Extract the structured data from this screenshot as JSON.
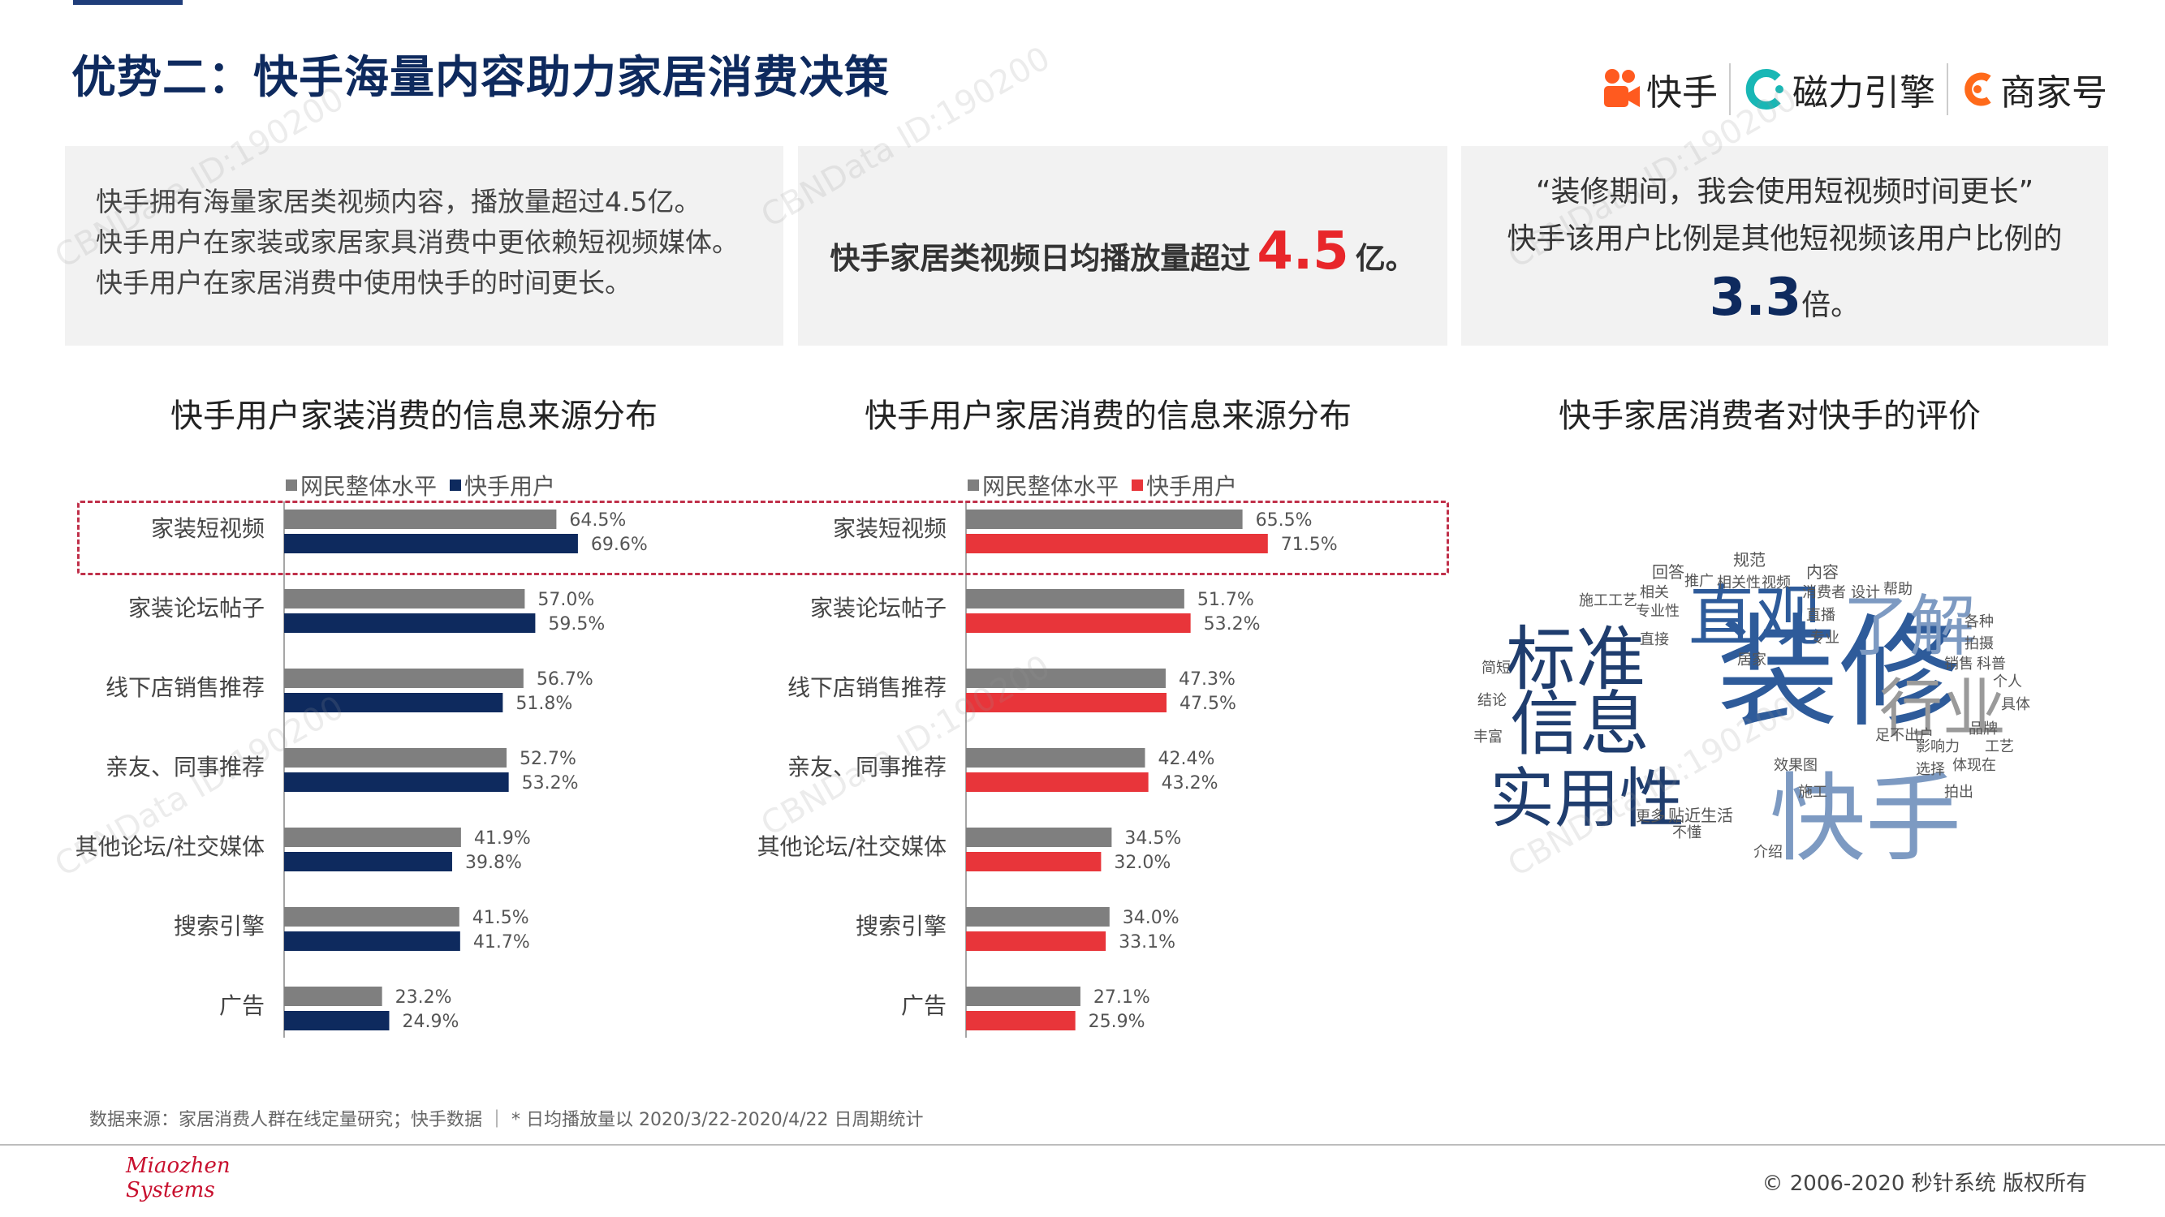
{
  "page": {
    "title": "优势二：快手海量内容助力家居消费决策",
    "footnote": "数据来源：家居消费人群在线定量研究；快手数据 ｜ * 日均播放量以 2020/3/22-2020/4/22 日周期统计",
    "brand_logo_line1": "Miaozhen",
    "brand_logo_line2": "Systems",
    "copyright": "© 2006-2020 秒针系统 版权所有",
    "watermark": "CBNData ID:190200",
    "logos": [
      "快手",
      "磁力引擎",
      "商家号"
    ]
  },
  "cards": {
    "card1_lines": [
      "快手拥有海量家居类视频内容，播放量超过4.5亿。",
      "快手用户在家装或家居家具消费中更依赖短视频媒体。",
      "快手用户在家居消费中使用快手的时间更长。"
    ],
    "card2_prefix": "快手家居类视频日均播放量超过",
    "card2_value": "4.5",
    "card2_suffix": "亿。",
    "card3_line1": "“装修期间，我会使用短视频时间更长”",
    "card3_line2": "快手该用户比例是其他短视频该用户比例的",
    "card3_value": "3.3",
    "card3_suffix": "倍。"
  },
  "sections": {
    "chart1_title": "快手用户家装消费的信息来源分布",
    "chart2_title": "快手用户家居消费的信息来源分布",
    "cloud_title": "快手家居消费者对快手的评价"
  },
  "colors": {
    "overall": "#7f7f7f",
    "kuaishou_navy": "#0e2a5e",
    "kuaishou_red": "#e8353a",
    "title": "#0e2a5e"
  },
  "chart_data": [
    {
      "type": "bar",
      "orientation": "horizontal",
      "title": "快手用户家装消费的信息来源分布",
      "categories": [
        "家装短视频",
        "家装论坛帖子",
        "线下店销售推荐",
        "亲友、同事推荐",
        "其他论坛/社交媒体",
        "搜索引擎",
        "广告"
      ],
      "series": [
        {
          "name": "网民整体水平",
          "values": [
            64.5,
            57.0,
            56.7,
            52.7,
            41.9,
            41.5,
            23.2
          ],
          "color": "#7f7f7f"
        },
        {
          "name": "快手用户",
          "values": [
            69.6,
            59.5,
            51.8,
            53.2,
            39.8,
            41.7,
            24.9
          ],
          "color": "#0e2a5e"
        }
      ],
      "value_suffix": "%",
      "xlim": [
        0,
        100
      ],
      "legend": "top"
    },
    {
      "type": "bar",
      "orientation": "horizontal",
      "title": "快手用户家居消费的信息来源分布",
      "categories": [
        "家装短视频",
        "家装论坛帖子",
        "线下店销售推荐",
        "亲友、同事推荐",
        "其他论坛/社交媒体",
        "搜索引擎",
        "广告"
      ],
      "series": [
        {
          "name": "网民整体水平",
          "values": [
            65.5,
            51.7,
            47.3,
            42.4,
            34.5,
            34.0,
            27.1
          ],
          "color": "#7f7f7f"
        },
        {
          "name": "快手用户",
          "values": [
            71.5,
            53.2,
            47.5,
            43.2,
            32.0,
            33.1,
            25.9
          ],
          "color": "#e8353a"
        }
      ],
      "value_suffix": "%",
      "xlim": [
        0,
        100
      ],
      "legend": "top"
    }
  ],
  "word_cloud": [
    {
      "text": "装修",
      "color": "#2e5b9a"
    },
    {
      "text": "快手",
      "color": "#7d9ac2"
    },
    {
      "text": "标准",
      "color": "#1f3d6e"
    },
    {
      "text": "直观",
      "color": "#2e5b9a"
    },
    {
      "text": "了解",
      "color": "#7d9ac2"
    },
    {
      "text": "信息",
      "color": "#1f3d6e"
    },
    {
      "text": "实用性",
      "color": "#1f3d6e"
    },
    {
      "text": "行业",
      "color": "#9a9a9a"
    },
    {
      "text": "规范",
      "color": "#555555"
    },
    {
      "text": "回答",
      "color": "#555555"
    },
    {
      "text": "推广",
      "color": "#555555"
    },
    {
      "text": "相关性",
      "color": "#555555"
    },
    {
      "text": "视频",
      "color": "#555555"
    },
    {
      "text": "内容",
      "color": "#555555"
    },
    {
      "text": "施工工艺",
      "color": "#555555"
    },
    {
      "text": "相关",
      "color": "#555555"
    },
    {
      "text": "消费者",
      "color": "#555555"
    },
    {
      "text": "设计",
      "color": "#555555"
    },
    {
      "text": "帮助",
      "color": "#555555"
    },
    {
      "text": "专业性",
      "color": "#555555"
    },
    {
      "text": "直播",
      "color": "#555555"
    },
    {
      "text": "各种",
      "color": "#555555"
    },
    {
      "text": "直接",
      "color": "#555555"
    },
    {
      "text": "专业",
      "color": "#555555"
    },
    {
      "text": "拍摄",
      "color": "#555555"
    },
    {
      "text": "简短",
      "color": "#555555"
    },
    {
      "text": "居家",
      "color": "#555555"
    },
    {
      "text": "销售",
      "color": "#555555"
    },
    {
      "text": "科普",
      "color": "#555555"
    },
    {
      "text": "个人",
      "color": "#555555"
    },
    {
      "text": "结论",
      "color": "#555555"
    },
    {
      "text": "具体",
      "color": "#555555"
    },
    {
      "text": "丰富",
      "color": "#555555"
    },
    {
      "text": "品牌",
      "color": "#555555"
    },
    {
      "text": "足不出户",
      "color": "#555555"
    },
    {
      "text": "影响力",
      "color": "#555555"
    },
    {
      "text": "工艺",
      "color": "#555555"
    },
    {
      "text": "效果图",
      "color": "#555555"
    },
    {
      "text": "选择",
      "color": "#555555"
    },
    {
      "text": "体现在",
      "color": "#555555"
    },
    {
      "text": "施工",
      "color": "#555555"
    },
    {
      "text": "拍出",
      "color": "#555555"
    },
    {
      "text": "贴近生活",
      "color": "#555555"
    },
    {
      "text": "更多",
      "color": "#555555"
    },
    {
      "text": "不懂",
      "color": "#555555"
    },
    {
      "text": "介绍",
      "color": "#555555"
    }
  ]
}
